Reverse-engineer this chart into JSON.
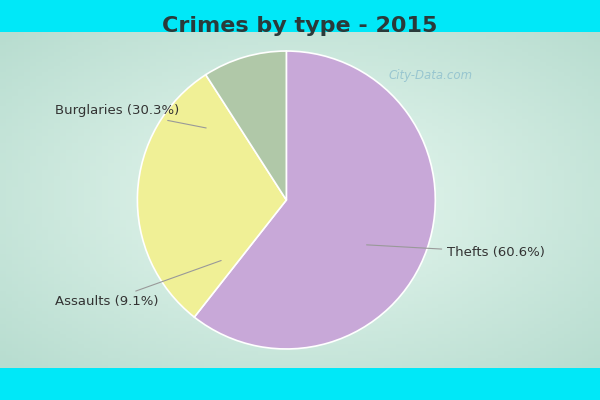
{
  "title": "Crimes by type - 2015",
  "slices": [
    {
      "label": "Thefts (60.6%)",
      "value": 60.6,
      "color": "#c8a8d8"
    },
    {
      "label": "Burglaries (30.3%)",
      "value": 30.3,
      "color": "#f0f096"
    },
    {
      "label": "Assaults (9.1%)",
      "value": 9.1,
      "color": "#b0c8a8"
    }
  ],
  "bg_border": "#00e8f8",
  "bg_chart": "#cce8dc",
  "bg_chart_center": "#e8f8f0",
  "title_fontsize": 16,
  "label_fontsize": 9.5,
  "startangle": 90,
  "watermark": "City-Data.com"
}
